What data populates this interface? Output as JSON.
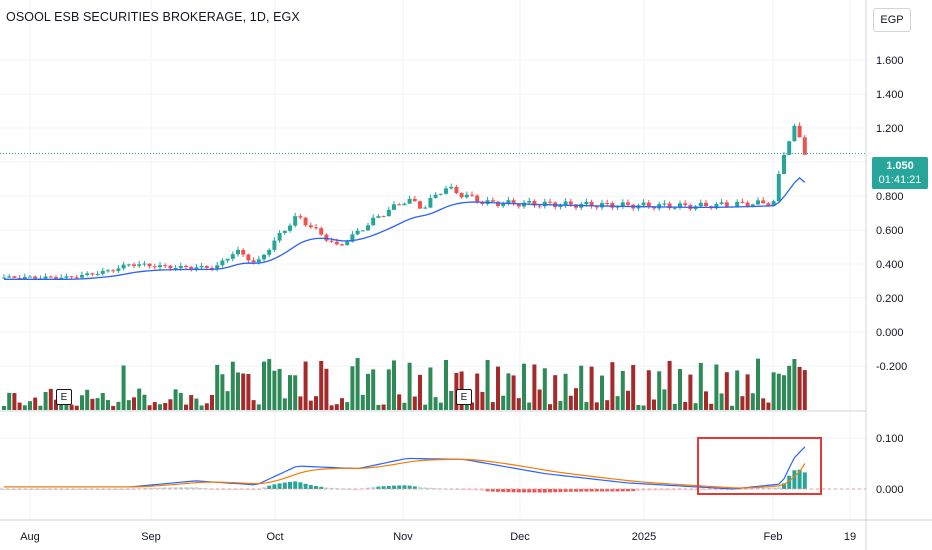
{
  "header": {
    "title": "OSOOL ESB SECURITIES BROKERAGE, 1D, EGX",
    "currency": "EGP"
  },
  "last_price": {
    "value": "1.050",
    "countdown": "01:41:21"
  },
  "earnings_badges": [
    "E",
    "E"
  ],
  "colors": {
    "up": "#26a69a",
    "up_volume": "#2e8b57",
    "down": "#ef5350",
    "down_volume": "#a52a2a",
    "ma_line": "#2962ff",
    "signal_line": "#f57c00",
    "highlight_box": "#e53935"
  },
  "chart_data": [
    {
      "type": "candlestick",
      "title": "OSOOL ESB SECURITIES BROKERAGE, 1D, EGX",
      "y_ticks": [
        "1.600",
        "1.400",
        "1.200",
        "1.000",
        "0.800",
        "0.600",
        "0.400",
        "0.200",
        "0.000",
        "-0.200"
      ],
      "ylim": [
        -0.23,
        1.85
      ],
      "x_ticks": [
        "Aug",
        "Sep",
        "Oct",
        "Nov",
        "Dec",
        "2025",
        "Feb",
        "19"
      ],
      "grid": true,
      "ohlc_anchor_close": [
        [
          "2024-07-25",
          0.32
        ],
        [
          "2024-08-10",
          0.32
        ],
        [
          "2024-08-20",
          0.36
        ],
        [
          "2024-08-25",
          0.4
        ],
        [
          "2024-09-05",
          0.38
        ],
        [
          "2024-09-15",
          0.38
        ],
        [
          "2024-09-20",
          0.48
        ],
        [
          "2024-09-25",
          0.4
        ],
        [
          "2024-10-01",
          0.58
        ],
        [
          "2024-10-05",
          0.68
        ],
        [
          "2024-10-15",
          0.5
        ],
        [
          "2024-10-25",
          0.68
        ],
        [
          "2024-11-01",
          0.78
        ],
        [
          "2024-11-05",
          0.73
        ],
        [
          "2024-11-10",
          0.85
        ],
        [
          "2024-11-20",
          0.76
        ],
        [
          "2024-12-10",
          0.75
        ],
        [
          "2025-01-10",
          0.74
        ],
        [
          "2025-01-30",
          0.76
        ],
        [
          "2025-02-02",
          1.1
        ],
        [
          "2025-02-04",
          1.2
        ],
        [
          "2025-02-07",
          1.05
        ]
      ],
      "last_close": 1.05,
      "moving_average_end": 0.88,
      "series": [
        {
          "name": "Volume",
          "type": "bar"
        }
      ]
    },
    {
      "type": "line",
      "y_ticks": [
        "0.100",
        "0.000"
      ],
      "ylim": [
        -0.02,
        0.115
      ],
      "macd_anchor": [
        [
          "2024-07-25",
          0.004
        ],
        [
          "2024-08-25",
          0.004
        ],
        [
          "2024-09-10",
          0.016
        ],
        [
          "2024-09-25",
          0.008
        ],
        [
          "2024-10-05",
          0.045
        ],
        [
          "2024-10-20",
          0.04
        ],
        [
          "2024-11-01",
          0.06
        ],
        [
          "2024-11-15",
          0.058
        ],
        [
          "2024-12-05",
          0.03
        ],
        [
          "2024-12-25",
          0.012
        ],
        [
          "2025-01-20",
          0.0
        ],
        [
          "2025-02-01",
          0.01
        ],
        [
          "2025-02-04",
          0.06
        ],
        [
          "2025-02-07",
          0.085
        ]
      ],
      "signal_end": 0.05,
      "series": [
        {
          "name": "MACD",
          "type": "line"
        },
        {
          "name": "Signal",
          "type": "line"
        },
        {
          "name": "Histogram",
          "type": "bar"
        }
      ]
    }
  ]
}
